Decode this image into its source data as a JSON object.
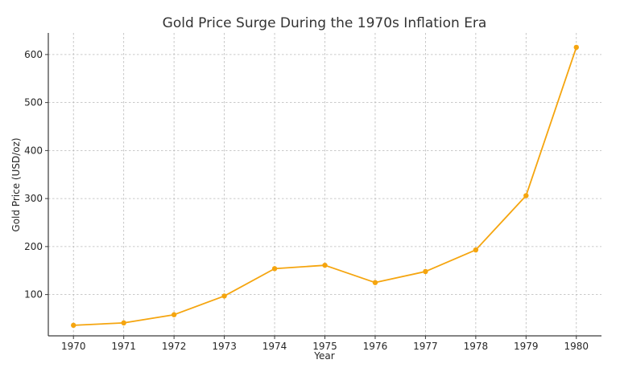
{
  "chart_data": {
    "type": "line",
    "title": "Gold Price Surge During the 1970s Inflation Era",
    "xlabel": "Year",
    "ylabel": "Gold Price (USD/oz)",
    "x": [
      1970,
      1971,
      1972,
      1973,
      1974,
      1975,
      1976,
      1977,
      1978,
      1979,
      1980
    ],
    "series": [
      {
        "name": "",
        "color": "#f5a50f",
        "values": [
          36,
          41,
          58,
          97,
          154,
          161,
          125,
          148,
          193,
          306,
          615
        ]
      }
    ],
    "xlim": [
      1969.5,
      1980.5
    ],
    "ylim": [
      14,
      645
    ],
    "yticks": [
      100,
      200,
      300,
      400,
      500,
      600
    ],
    "grid": true,
    "legend": "none"
  }
}
